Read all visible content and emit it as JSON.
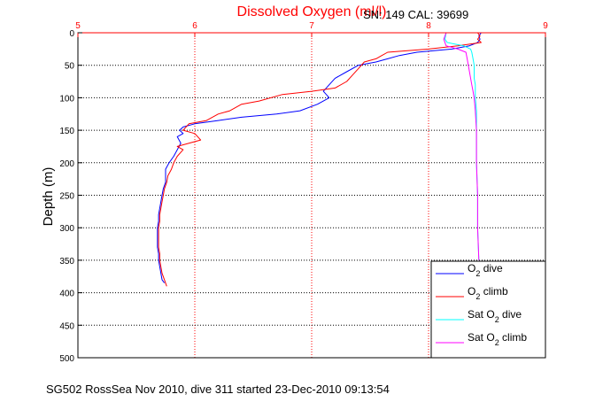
{
  "chart_data": {
    "type": "line",
    "title": "Dissolved Oxygen (ml/l)",
    "title_color": "#ff0000",
    "annotation": "SN: 149  CAL: 39699",
    "footer": "SG502 RossSea Nov 2010, dive 311 started 23-Dec-2010 09:13:54",
    "ylabel": "Depth (m)",
    "xlim": [
      5,
      9
    ],
    "ylim": [
      0,
      500
    ],
    "y_reversed": true,
    "x_axis_position": "top",
    "x_ticks": [
      "5",
      "6",
      "7",
      "8",
      "9"
    ],
    "y_ticks": [
      "0",
      "50",
      "100",
      "150",
      "200",
      "250",
      "300",
      "350",
      "400",
      "450",
      "500"
    ],
    "grid": true,
    "legend_position": "bottom-right",
    "legend": [
      {
        "label": "O",
        "sub": "2",
        "suffix": " dive",
        "color": "#0000ff"
      },
      {
        "label": "O",
        "sub": "2",
        "suffix": " climb",
        "color": "#ff0000"
      },
      {
        "label": "Sat O",
        "sub": "2",
        "suffix": " dive",
        "color": "#00ffff"
      },
      {
        "label": "Sat O",
        "sub": "2",
        "suffix": " climb",
        "color": "#ff00ff"
      }
    ],
    "series": [
      {
        "color": "#0000ff",
        "points": [
          [
            8.45,
            0
          ],
          [
            8.43,
            5
          ],
          [
            8.44,
            10
          ],
          [
            8.42,
            15
          ],
          [
            8.35,
            20
          ],
          [
            8.2,
            25
          ],
          [
            7.9,
            30
          ],
          [
            7.75,
            35
          ],
          [
            7.65,
            40
          ],
          [
            7.55,
            45
          ],
          [
            7.4,
            50
          ],
          [
            7.3,
            60
          ],
          [
            7.2,
            70
          ],
          [
            7.15,
            80
          ],
          [
            7.1,
            90
          ],
          [
            7.15,
            100
          ],
          [
            7.05,
            110
          ],
          [
            6.9,
            120
          ],
          [
            6.7,
            125
          ],
          [
            6.4,
            130
          ],
          [
            6.2,
            135
          ],
          [
            6.0,
            140
          ],
          [
            5.9,
            145
          ],
          [
            5.87,
            150
          ],
          [
            5.9,
            155
          ],
          [
            5.85,
            160
          ],
          [
            5.88,
            170
          ],
          [
            5.85,
            180
          ],
          [
            5.82,
            190
          ],
          [
            5.78,
            200
          ],
          [
            5.75,
            210
          ],
          [
            5.75,
            220
          ],
          [
            5.75,
            230
          ],
          [
            5.73,
            240
          ],
          [
            5.72,
            250
          ],
          [
            5.71,
            260
          ],
          [
            5.7,
            270
          ],
          [
            5.69,
            280
          ],
          [
            5.69,
            290
          ],
          [
            5.68,
            300
          ],
          [
            5.68,
            310
          ],
          [
            5.68,
            320
          ],
          [
            5.68,
            330
          ],
          [
            5.69,
            340
          ],
          [
            5.69,
            350
          ],
          [
            5.7,
            360
          ],
          [
            5.71,
            370
          ],
          [
            5.72,
            380
          ],
          [
            5.74,
            385
          ]
        ]
      },
      {
        "color": "#ff0000",
        "points": [
          [
            8.42,
            0
          ],
          [
            8.44,
            5
          ],
          [
            8.42,
            10
          ],
          [
            8.45,
            15
          ],
          [
            8.25,
            20
          ],
          [
            8.0,
            25
          ],
          [
            7.65,
            30
          ],
          [
            7.6,
            35
          ],
          [
            7.55,
            40
          ],
          [
            7.45,
            45
          ],
          [
            7.4,
            55
          ],
          [
            7.35,
            65
          ],
          [
            7.3,
            75
          ],
          [
            7.2,
            85
          ],
          [
            7.0,
            90
          ],
          [
            6.75,
            95
          ],
          [
            6.55,
            105
          ],
          [
            6.4,
            110
          ],
          [
            6.3,
            120
          ],
          [
            6.2,
            125
          ],
          [
            6.15,
            130
          ],
          [
            6.1,
            135
          ],
          [
            5.95,
            140
          ],
          [
            5.9,
            150
          ],
          [
            6.0,
            155
          ],
          [
            6.05,
            165
          ],
          [
            5.85,
            175
          ],
          [
            5.9,
            180
          ],
          [
            5.85,
            190
          ],
          [
            5.82,
            200
          ],
          [
            5.8,
            210
          ],
          [
            5.77,
            220
          ],
          [
            5.76,
            230
          ],
          [
            5.74,
            240
          ],
          [
            5.73,
            250
          ],
          [
            5.72,
            260
          ],
          [
            5.71,
            270
          ],
          [
            5.7,
            280
          ],
          [
            5.7,
            290
          ],
          [
            5.69,
            300
          ],
          [
            5.69,
            310
          ],
          [
            5.69,
            320
          ],
          [
            5.69,
            330
          ],
          [
            5.7,
            340
          ],
          [
            5.7,
            350
          ],
          [
            5.71,
            360
          ],
          [
            5.72,
            370
          ],
          [
            5.74,
            380
          ],
          [
            5.76,
            390
          ]
        ]
      },
      {
        "color": "#00ffff",
        "points": [
          [
            8.15,
            0
          ],
          [
            8.14,
            10
          ],
          [
            8.16,
            15
          ],
          [
            8.3,
            20
          ],
          [
            8.36,
            25
          ],
          [
            8.37,
            30
          ],
          [
            8.38,
            40
          ],
          [
            8.39,
            50
          ],
          [
            8.39,
            60
          ],
          [
            8.39,
            70
          ],
          [
            8.4,
            80
          ],
          [
            8.4,
            90
          ],
          [
            8.4,
            100
          ],
          [
            8.41,
            120
          ],
          [
            8.41,
            150
          ],
          [
            8.41,
            200
          ],
          [
            8.42,
            250
          ],
          [
            8.42,
            300
          ],
          [
            8.43,
            350
          ]
        ]
      },
      {
        "color": "#ff00ff",
        "points": [
          [
            8.15,
            0
          ],
          [
            8.13,
            10
          ],
          [
            8.15,
            20
          ],
          [
            8.25,
            25
          ],
          [
            8.32,
            30
          ],
          [
            8.33,
            40
          ],
          [
            8.34,
            50
          ],
          [
            8.35,
            60
          ],
          [
            8.36,
            70
          ],
          [
            8.37,
            80
          ],
          [
            8.38,
            90
          ],
          [
            8.39,
            100
          ],
          [
            8.4,
            120
          ],
          [
            8.41,
            150
          ],
          [
            8.41,
            200
          ],
          [
            8.42,
            250
          ],
          [
            8.42,
            300
          ],
          [
            8.43,
            350
          ]
        ]
      }
    ]
  }
}
